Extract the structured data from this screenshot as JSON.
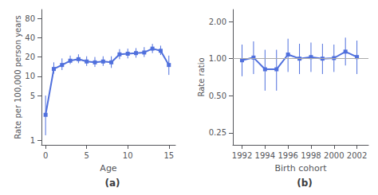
{
  "chart_data": [
    {
      "type": "line",
      "marker": "square",
      "log": "y",
      "grid": false,
      "x": [
        0,
        1,
        2,
        3,
        4,
        5,
        6,
        7,
        8,
        9,
        10,
        11,
        12,
        13,
        14,
        15
      ],
      "values": [
        2.5,
        13.0,
        15.0,
        17.5,
        18.5,
        17.0,
        16.5,
        17.0,
        16.5,
        22.0,
        22.5,
        23.0,
        23.5,
        27.0,
        25.0,
        15.0
      ],
      "y_lower": [
        1.2,
        11.0,
        12.5,
        15.5,
        16.0,
        14.5,
        14.0,
        14.5,
        13.5,
        18.5,
        19.0,
        19.5,
        20.0,
        23.0,
        21.5,
        10.5
      ],
      "y_upper": [
        5.0,
        16.5,
        19.0,
        21.0,
        22.0,
        20.5,
        20.0,
        20.5,
        20.5,
        26.5,
        27.0,
        27.5,
        28.5,
        32.0,
        30.0,
        21.0
      ],
      "xlabel": "Age",
      "ylabel": "Rate per 100,000 person years",
      "annotation": "(a)",
      "xlim": [
        -0.5,
        15.8
      ],
      "xticks": [
        0,
        5,
        10,
        15
      ],
      "ylim": [
        0.85,
        110
      ],
      "yticks": [
        1,
        5,
        10,
        20,
        40,
        80
      ]
    },
    {
      "type": "line",
      "marker": "square",
      "log": "y",
      "grid": false,
      "x": [
        1992,
        1993,
        1994,
        1995,
        1996,
        1997,
        1998,
        1999,
        2000,
        2001,
        2002
      ],
      "values": [
        0.97,
        1.02,
        0.82,
        0.82,
        1.08,
        1.0,
        1.03,
        1.0,
        1.01,
        1.14,
        1.03
      ],
      "y_lower": [
        0.72,
        0.75,
        0.55,
        0.55,
        0.78,
        0.75,
        0.78,
        0.75,
        0.78,
        0.88,
        0.75
      ],
      "y_upper": [
        1.3,
        1.38,
        1.18,
        1.18,
        1.45,
        1.32,
        1.35,
        1.32,
        1.3,
        1.48,
        1.4
      ],
      "hline": 1.0,
      "xlabel": "Birth cohort",
      "ylabel": "Rate ratio",
      "annotation": "(b)",
      "xlim": [
        1991.2,
        2003.0
      ],
      "xticks": [
        1992,
        1994,
        1996,
        1998,
        2000,
        2002
      ],
      "ylim": [
        0.2,
        2.5
      ],
      "yticks": [
        0.25,
        {
          "value": 0.5,
          "label": "0.50"
        },
        {
          "value": 1.0,
          "label": "1.00"
        },
        {
          "value": 2.0,
          "label": "2.00"
        }
      ]
    }
  ]
}
